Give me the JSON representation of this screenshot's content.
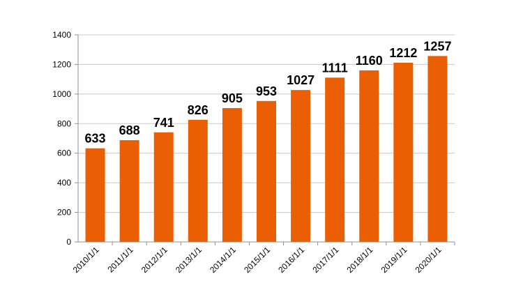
{
  "chart_data": {
    "type": "bar",
    "title": "",
    "xlabel": "",
    "ylabel": "",
    "categories": [
      "2010/1/1",
      "2011/1/1",
      "2012/1/1",
      "2013/1/1",
      "2014/1/1",
      "2015/1/1",
      "2016/1/1",
      "2017/1/1",
      "2018/1/1",
      "2019/1/1",
      "2020/1/1"
    ],
    "values": [
      633,
      688,
      741,
      826,
      905,
      953,
      1027,
      1111,
      1160,
      1212,
      1257
    ],
    "data_labels": [
      "633",
      "688",
      "741",
      "826",
      "905",
      "953",
      "1027",
      "1111",
      "1160",
      "1212",
      "1257"
    ],
    "ylim": [
      0,
      1400
    ],
    "yticks": [
      0,
      200,
      400,
      600,
      800,
      1000,
      1200,
      1400
    ],
    "ytick_labels": [
      "0",
      "200",
      "400",
      "600",
      "800",
      "1000",
      "1200",
      "1400"
    ],
    "grid": "horizontal",
    "legend": "none",
    "colors": {
      "bar": "#EA5F04",
      "grid": "#C8C8C8",
      "axis": "#909090",
      "text": "#000000"
    }
  }
}
